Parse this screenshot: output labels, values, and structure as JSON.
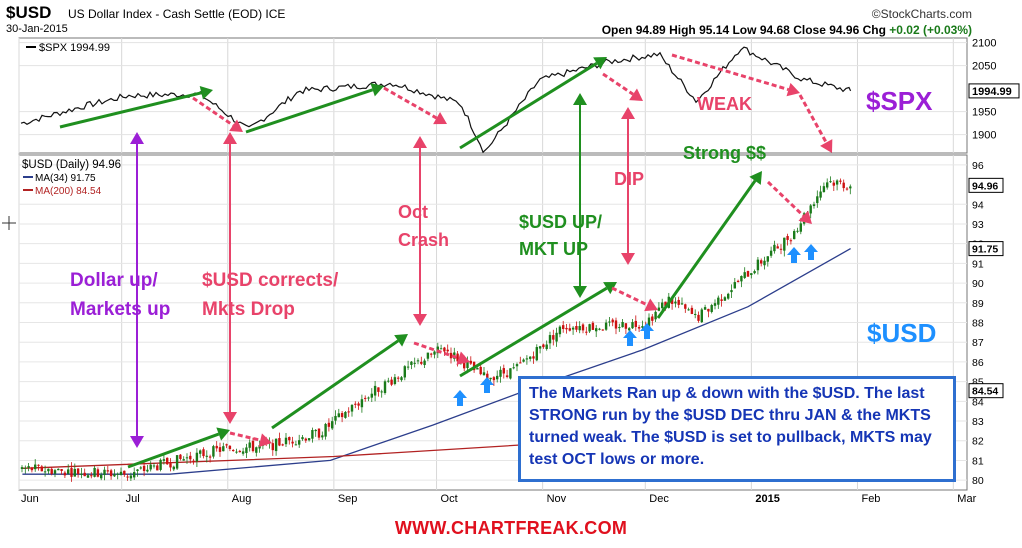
{
  "header": {
    "symbol": "$USD",
    "name": "US Dollar Index - Cash Settle (EOD) ICE",
    "date": "30-Jan-2015",
    "source": "©StockCharts.com",
    "ohlc": {
      "open_label": "Open",
      "open": "94.89",
      "high_label": "High",
      "high": "95.14",
      "low_label": "Low",
      "low": "94.68",
      "close_label": "Close",
      "close": "94.96",
      "chg_label": "Chg",
      "chg": "+0.02 (+0.03%)"
    }
  },
  "panels": {
    "spx": {
      "legend": "$SPX 1994.99",
      "ticks": [
        "2100",
        "2050",
        "1994.99",
        "1950",
        "1900"
      ],
      "tick_values": [
        2100,
        2050,
        1994.99,
        1950,
        1900
      ],
      "last_value": "1994.99"
    },
    "usd": {
      "legend_title": "$USD (Daily) 94.96",
      "legend_ma34": "MA(34) 91.75",
      "legend_ma200": "MA(200) 84.54",
      "ticks": [
        "96",
        "94.96",
        "94",
        "93",
        "92",
        "91.75",
        "91",
        "90",
        "89",
        "88",
        "87",
        "86",
        "85",
        "84.54",
        "84",
        "83",
        "82",
        "81",
        "80"
      ],
      "tick_values": [
        96,
        94.96,
        94,
        93,
        92,
        91.75,
        91,
        90,
        89,
        88,
        87,
        86,
        85,
        84.54,
        84,
        83,
        82,
        81,
        80
      ],
      "highlight_values": [
        "94.96",
        "91.75",
        "84.54"
      ]
    }
  },
  "x_axis": {
    "labels": [
      "Jun",
      "Jul",
      "Aug",
      "Sep",
      "Oct",
      "Nov",
      "Dec",
      "2015",
      "Feb",
      "Mar"
    ]
  },
  "annotations": {
    "dollar_up": "Dollar up/\nMarkets up",
    "usd_corrects": "$USD corrects/\nMkts Drop",
    "oct_crash": "Oct\nCrash",
    "usd_up_mkt_up": "$USD UP/\nMKT UP",
    "dip": "DIP",
    "strong": "Strong $$",
    "weak": "WEAK",
    "spx_big": "$SPX",
    "usd_big": "$USD"
  },
  "note": "The Markets Ran up & down with the $USD. The last STRONG run by the $USD DEC thru JAN  & the MKTS turned weak. The $USD is set to pullback, MKTS may test OCT lows or more.",
  "watermark": "WWW.CHARTFREAK.COM",
  "colors": {
    "green_arrow": "#1f8f1f",
    "pink_arrow": "#e8436a",
    "purple": "#9b1fd6",
    "blue": "#1e90ff",
    "note_text": "#1535b5",
    "watermark": "#e0101e",
    "candle_up": "#1a7a1a",
    "candle_down": "#cc1111",
    "ma34": "#2c3e8c",
    "ma200": "#b22222"
  },
  "chart_data": [
    {
      "type": "line",
      "title": "$SPX 1994.99",
      "series": [
        {
          "name": "$SPX",
          "x": [
            "2014-06-02",
            "2014-06-20",
            "2014-07-03",
            "2014-07-24",
            "2014-08-07",
            "2014-08-22",
            "2014-09-18",
            "2014-10-08",
            "2014-10-15",
            "2014-10-31",
            "2014-11-20",
            "2014-12-05",
            "2014-12-16",
            "2014-12-29",
            "2015-01-16",
            "2015-01-30"
          ],
          "values": [
            1925,
            1962,
            1985,
            1988,
            1910,
            1995,
            2012,
            1968,
            1862,
            2018,
            2058,
            2075,
            1972,
            2090,
            2020,
            1994.99
          ]
        }
      ],
      "ylim": [
        1860,
        2110
      ]
    },
    {
      "type": "line",
      "title": "$USD (Daily) 94.96",
      "series": [
        {
          "name": "$USD",
          "x": [
            "2014-06-02",
            "2014-06-20",
            "2014-07-03",
            "2014-07-15",
            "2014-07-31",
            "2014-08-12",
            "2014-08-28",
            "2014-09-10",
            "2014-09-25",
            "2014-10-03",
            "2014-10-15",
            "2014-10-24",
            "2014-11-07",
            "2014-11-20",
            "2014-12-01",
            "2014-12-08",
            "2014-12-16",
            "2014-12-29",
            "2015-01-13",
            "2015-01-23",
            "2015-01-30"
          ],
          "values": [
            80.6,
            80.4,
            80.3,
            80.9,
            81.6,
            81.7,
            82.4,
            84.2,
            85.9,
            86.7,
            85.2,
            85.6,
            87.8,
            87.8,
            88.0,
            89.2,
            88.2,
            90.2,
            92.5,
            95.2,
            94.96
          ]
        },
        {
          "name": "MA(34)",
          "x": [
            "2014-06-02",
            "2014-07-15",
            "2014-08-31",
            "2014-09-30",
            "2014-10-31",
            "2014-11-30",
            "2014-12-31",
            "2015-01-30"
          ],
          "values": [
            80.3,
            80.3,
            81.0,
            82.8,
            84.8,
            86.6,
            88.8,
            91.75
          ]
        },
        {
          "name": "MA(200)",
          "x": [
            "2014-06-02",
            "2014-09-01",
            "2014-11-15",
            "2015-01-30"
          ],
          "values": [
            80.6,
            81.2,
            82.0,
            84.54
          ]
        }
      ],
      "ylim": [
        79.5,
        96.5
      ]
    }
  ]
}
